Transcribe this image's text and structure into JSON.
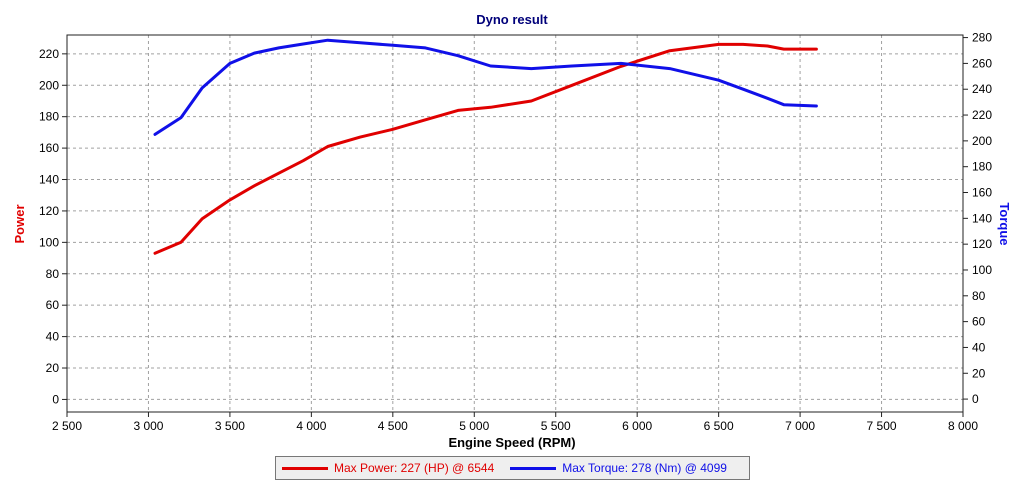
{
  "chart_data": {
    "type": "line",
    "title": "Dyno result",
    "xlabel": "Engine Speed (RPM)",
    "ylabel_left": "Power",
    "ylabel_right": "Torque",
    "xlim": [
      2500,
      8000
    ],
    "ylim_left": [
      -8,
      232
    ],
    "ylim_right": [
      -10,
      282
    ],
    "x_ticks": [
      2500,
      3000,
      3500,
      4000,
      4500,
      5000,
      5500,
      6000,
      6500,
      7000,
      7500,
      8000
    ],
    "x_tick_labels": [
      "2 500",
      "3 000",
      "3 500",
      "4 000",
      "4 500",
      "5 000",
      "5 500",
      "6 000",
      "6 500",
      "7 000",
      "7 500",
      "8 000"
    ],
    "y_left_ticks": [
      0,
      20,
      40,
      60,
      80,
      100,
      120,
      140,
      160,
      180,
      200,
      220
    ],
    "y_right_ticks": [
      0,
      20,
      40,
      60,
      80,
      100,
      120,
      140,
      160,
      180,
      200,
      220,
      240,
      260,
      280
    ],
    "grid": true,
    "series": [
      {
        "name": "Max Power",
        "axis": "left",
        "color": "#e00000",
        "x": [
          3040,
          3200,
          3330,
          3500,
          3650,
          3800,
          3950,
          4100,
          4300,
          4500,
          4700,
          4900,
          5100,
          5350,
          5600,
          5900,
          6200,
          6500,
          6650,
          6800,
          6900,
          7100
        ],
        "y": [
          93,
          100,
          115,
          127,
          136,
          144,
          152,
          161,
          167,
          172,
          178,
          184,
          186,
          190,
          200,
          212,
          222,
          226,
          226,
          225,
          223,
          223
        ]
      },
      {
        "name": "Max Torque",
        "axis": "right",
        "color": "#1010e8",
        "x": [
          3040,
          3200,
          3330,
          3500,
          3650,
          3800,
          3950,
          4100,
          4300,
          4500,
          4700,
          4900,
          5100,
          5350,
          5600,
          5900,
          6200,
          6500,
          6650,
          6800,
          6900,
          7100
        ],
        "y": [
          205,
          218,
          241,
          260,
          268,
          272,
          275,
          278,
          276,
          274,
          272,
          266,
          258,
          256,
          258,
          260,
          256,
          247,
          240,
          233,
          228,
          227
        ]
      }
    ],
    "legend": [
      {
        "text": "Max Power: 227 (HP) @ 6544",
        "color": "#e00000"
      },
      {
        "text": "Max Torque: 278 (Nm) @ 4099",
        "color": "#1010e8"
      }
    ],
    "legend_position": "bottom"
  }
}
